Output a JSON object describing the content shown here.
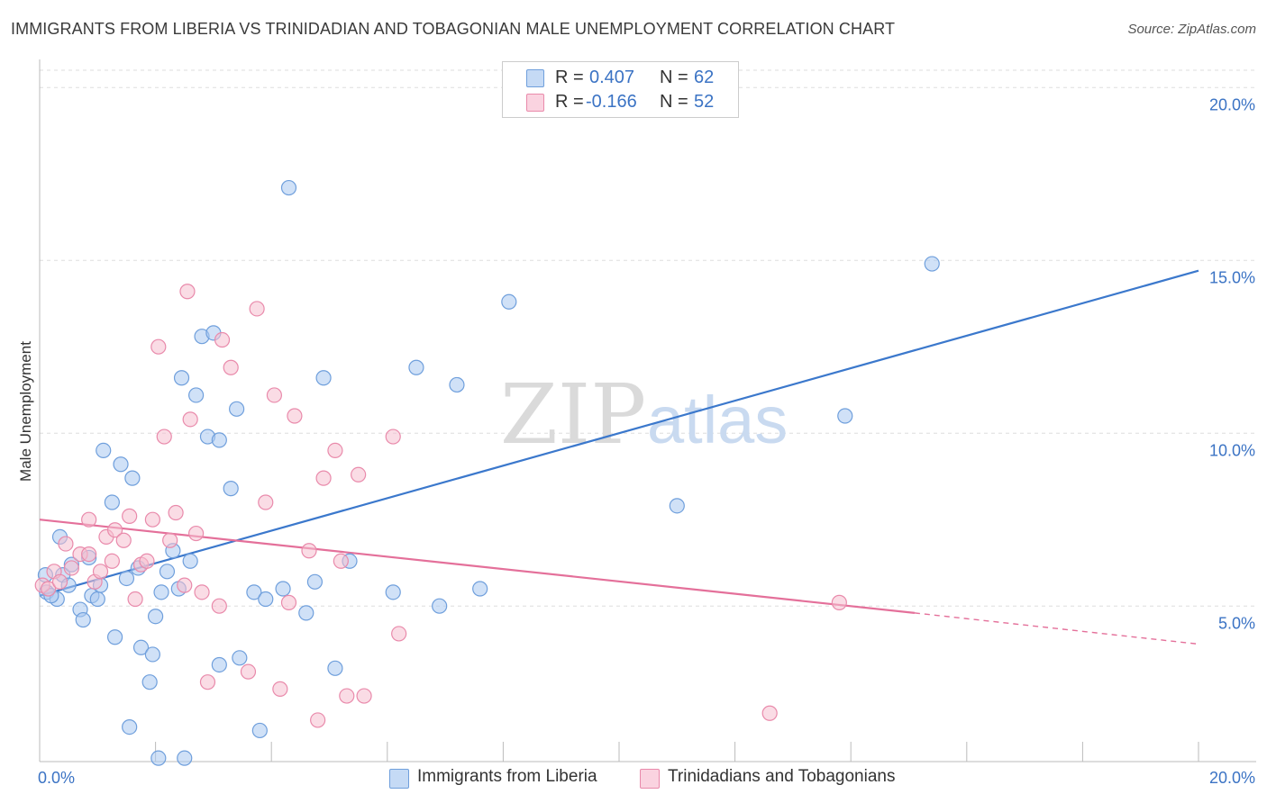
{
  "title": "IMMIGRANTS FROM LIBERIA VS TRINIDADIAN AND TOBAGONIAN MALE UNEMPLOYMENT CORRELATION CHART",
  "source": "Source: ZipAtlas.com",
  "legend": {
    "r_label": "R =",
    "n_label": "N =",
    "rows": [
      {
        "r": "0.407",
        "n": "62"
      },
      {
        "r": "-0.166",
        "n": "52"
      }
    ]
  },
  "colors": {
    "blue_fill": "#a9c8f0",
    "blue_stroke": "#6f9fdc",
    "blue_line": "#3b78cc",
    "pink_fill": "#f6bfd0",
    "pink_stroke": "#e98aab",
    "pink_line": "#e4709a",
    "tick_text": "#3b73c4"
  },
  "chart_data": {
    "type": "scatter",
    "title": "IMMIGRANTS FROM LIBERIA VS TRINIDADIAN AND TOBAGONIAN MALE UNEMPLOYMENT CORRELATION CHART",
    "xlabel": "",
    "ylabel": "Male Unemployment",
    "xlim": [
      0,
      20
    ],
    "ylim": [
      0.5,
      20.5
    ],
    "x_tick_labels": [
      "0.0%",
      "20.0%"
    ],
    "y_ticks": [
      5,
      10,
      15,
      20
    ],
    "y_tick_labels": [
      "5.0%",
      "10.0%",
      "15.0%",
      "20.0%"
    ],
    "grid": true,
    "legend_position": "top-center",
    "series": [
      {
        "name": "Immigrants from Liberia",
        "color": "#a9c8f0",
        "points": [
          [
            0.1,
            5.9
          ],
          [
            0.12,
            5.4
          ],
          [
            0.3,
            5.2
          ],
          [
            0.35,
            7.0
          ],
          [
            0.4,
            5.9
          ],
          [
            0.5,
            5.6
          ],
          [
            0.55,
            6.2
          ],
          [
            0.7,
            4.9
          ],
          [
            0.75,
            4.6
          ],
          [
            0.85,
            6.4
          ],
          [
            0.9,
            5.3
          ],
          [
            1.0,
            5.2
          ],
          [
            1.05,
            5.6
          ],
          [
            1.1,
            9.5
          ],
          [
            1.25,
            8.0
          ],
          [
            1.3,
            4.1
          ],
          [
            1.4,
            9.1
          ],
          [
            1.5,
            5.8
          ],
          [
            1.55,
            1.5
          ],
          [
            1.6,
            8.7
          ],
          [
            1.7,
            6.1
          ],
          [
            1.75,
            3.8
          ],
          [
            1.9,
            2.8
          ],
          [
            1.95,
            3.6
          ],
          [
            2.0,
            4.7
          ],
          [
            2.05,
            0.6
          ],
          [
            2.1,
            5.4
          ],
          [
            2.2,
            6.0
          ],
          [
            2.3,
            6.6
          ],
          [
            2.4,
            5.5
          ],
          [
            2.45,
            11.6
          ],
          [
            2.5,
            0.6
          ],
          [
            2.6,
            6.3
          ],
          [
            2.7,
            11.1
          ],
          [
            2.8,
            12.8
          ],
          [
            2.9,
            9.9
          ],
          [
            3.0,
            12.9
          ],
          [
            3.1,
            9.8
          ],
          [
            3.1,
            3.3
          ],
          [
            3.3,
            8.4
          ],
          [
            3.4,
            10.7
          ],
          [
            3.45,
            3.5
          ],
          [
            3.7,
            5.4
          ],
          [
            3.8,
            1.4
          ],
          [
            3.9,
            5.2
          ],
          [
            4.2,
            5.5
          ],
          [
            4.3,
            17.1
          ],
          [
            4.6,
            4.8
          ],
          [
            4.75,
            5.7
          ],
          [
            4.9,
            11.6
          ],
          [
            5.1,
            3.2
          ],
          [
            5.35,
            6.3
          ],
          [
            6.1,
            5.4
          ],
          [
            6.5,
            11.9
          ],
          [
            6.9,
            5.0
          ],
          [
            7.2,
            11.4
          ],
          [
            7.6,
            5.5
          ],
          [
            8.1,
            13.8
          ],
          [
            11.0,
            7.9
          ],
          [
            13.9,
            10.5
          ],
          [
            15.4,
            14.9
          ],
          [
            0.2,
            5.3
          ]
        ]
      },
      {
        "name": "Trinidadians and Tobagonians",
        "color": "#f6bfd0",
        "points": [
          [
            0.05,
            5.6
          ],
          [
            0.15,
            5.5
          ],
          [
            0.25,
            6.0
          ],
          [
            0.35,
            5.7
          ],
          [
            0.45,
            6.8
          ],
          [
            0.55,
            6.1
          ],
          [
            0.7,
            6.5
          ],
          [
            0.85,
            6.5
          ],
          [
            0.85,
            7.5
          ],
          [
            0.95,
            5.7
          ],
          [
            1.05,
            6.0
          ],
          [
            1.15,
            7.0
          ],
          [
            1.25,
            6.3
          ],
          [
            1.3,
            7.2
          ],
          [
            1.45,
            6.9
          ],
          [
            1.55,
            7.6
          ],
          [
            1.65,
            5.2
          ],
          [
            1.75,
            6.2
          ],
          [
            1.85,
            6.3
          ],
          [
            1.95,
            7.5
          ],
          [
            2.05,
            12.5
          ],
          [
            2.15,
            9.9
          ],
          [
            2.25,
            6.9
          ],
          [
            2.35,
            7.7
          ],
          [
            2.5,
            5.6
          ],
          [
            2.55,
            14.1
          ],
          [
            2.6,
            10.4
          ],
          [
            2.7,
            7.1
          ],
          [
            2.8,
            5.4
          ],
          [
            2.9,
            2.8
          ],
          [
            3.1,
            5.0
          ],
          [
            3.15,
            12.7
          ],
          [
            3.3,
            11.9
          ],
          [
            3.6,
            3.1
          ],
          [
            3.75,
            13.6
          ],
          [
            3.9,
            8.0
          ],
          [
            4.05,
            11.1
          ],
          [
            4.15,
            2.6
          ],
          [
            4.3,
            5.1
          ],
          [
            4.4,
            10.5
          ],
          [
            4.65,
            6.6
          ],
          [
            4.8,
            1.7
          ],
          [
            4.9,
            8.7
          ],
          [
            5.1,
            9.5
          ],
          [
            5.2,
            6.3
          ],
          [
            5.3,
            2.4
          ],
          [
            5.5,
            8.8
          ],
          [
            5.6,
            2.4
          ],
          [
            6.1,
            9.9
          ],
          [
            6.2,
            4.2
          ],
          [
            12.6,
            1.9
          ],
          [
            13.8,
            5.1
          ]
        ]
      }
    ],
    "trend_lines": [
      {
        "series": "Immigrants from Liberia",
        "x": [
          0,
          20
        ],
        "y": [
          5.3,
          14.7
        ]
      },
      {
        "series": "Trinidadians and Tobagonians",
        "x": [
          0,
          15.1
        ],
        "y": [
          7.5,
          4.8
        ],
        "dashed_to": [
          20,
          3.9
        ]
      }
    ]
  },
  "bottom_legend": [
    "Immigrants from Liberia",
    "Trinidadians and Tobagonians"
  ]
}
